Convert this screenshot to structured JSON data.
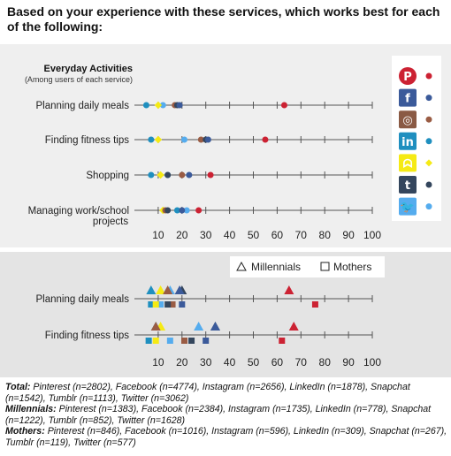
{
  "question": "Based on your experience with these services, which works best for each of the following:",
  "colors": {
    "Pinterest": "#cc2233",
    "Facebook": "#3b5a9a",
    "Instagram": "#9a5c44",
    "LinkedIn": "#1f8fbf",
    "Snapchat": "#f5ea14",
    "Tumblr": "#34465d",
    "Twitter": "#55acee"
  },
  "legend_icons": [
    {
      "service": "Pinterest",
      "glyph": "P",
      "icon": "pinterest-icon"
    },
    {
      "service": "Facebook",
      "glyph": "f",
      "icon": "facebook-icon"
    },
    {
      "service": "Instagram",
      "glyph": "◎",
      "icon": "instagram-icon"
    },
    {
      "service": "LinkedIn",
      "glyph": "in",
      "icon": "linkedin-icon"
    },
    {
      "service": "Snapchat",
      "glyph": "ᗣ",
      "icon": "snapchat-icon"
    },
    {
      "service": "Tumblr",
      "glyph": "t",
      "icon": "tumblr-icon"
    },
    {
      "service": "Twitter",
      "glyph": "🐦",
      "icon": "twitter-icon"
    }
  ],
  "chart_data": [
    {
      "type": "scatter",
      "title": "Everyday Activities",
      "subtitle": "(Among users of each service)",
      "xlim": [
        0,
        100
      ],
      "xticks": [
        10,
        20,
        30,
        40,
        50,
        60,
        70,
        80,
        90,
        100
      ],
      "categories": [
        "Planning daily meals",
        "Finding fitness tips",
        "Shopping",
        "Managing work/school projects"
      ],
      "series": [
        {
          "name": "Pinterest",
          "values": [
            63,
            55,
            32,
            27
          ]
        },
        {
          "name": "Facebook",
          "values": [
            19,
            31,
            23,
            20
          ]
        },
        {
          "name": "Instagram",
          "values": [
            17,
            28,
            20,
            13
          ]
        },
        {
          "name": "LinkedIn",
          "values": [
            5,
            7,
            7,
            18
          ]
        },
        {
          "name": "Snapchat",
          "values": [
            10,
            10,
            11,
            12
          ]
        },
        {
          "name": "Tumblr",
          "values": [
            18,
            30,
            14,
            14
          ]
        },
        {
          "name": "Twitter",
          "values": [
            12,
            21,
            14,
            22
          ]
        }
      ]
    },
    {
      "type": "scatter",
      "xlim": [
        0,
        100
      ],
      "xticks": [
        10,
        20,
        30,
        40,
        50,
        60,
        70,
        80,
        90,
        100
      ],
      "legend": [
        "Millennials",
        "Mothers"
      ],
      "categories": [
        "Planning daily meals",
        "Finding fitness tips"
      ],
      "groups": [
        {
          "name": "Millennials",
          "series": [
            {
              "name": "Pinterest",
              "values": [
                65,
                67
              ]
            },
            {
              "name": "Facebook",
              "values": [
                19,
                34
              ]
            },
            {
              "name": "Instagram",
              "values": [
                14,
                9
              ]
            },
            {
              "name": "LinkedIn",
              "values": [
                7,
                9
              ]
            },
            {
              "name": "Snapchat",
              "values": [
                11,
                11
              ]
            },
            {
              "name": "Tumblr",
              "values": [
                20,
                34
              ]
            },
            {
              "name": "Twitter",
              "values": [
                15,
                27
              ]
            }
          ]
        },
        {
          "name": "Mothers",
          "series": [
            {
              "name": "Pinterest",
              "values": [
                76,
                62
              ]
            },
            {
              "name": "Facebook",
              "values": [
                20,
                30
              ]
            },
            {
              "name": "Instagram",
              "values": [
                16,
                21
              ]
            },
            {
              "name": "LinkedIn",
              "values": [
                7,
                6
              ]
            },
            {
              "name": "Snapchat",
              "values": [
                9,
                9
              ]
            },
            {
              "name": "Tumblr",
              "values": [
                14,
                24
              ]
            },
            {
              "name": "Twitter",
              "values": [
                11,
                15
              ]
            }
          ]
        }
      ]
    }
  ],
  "totals": [
    {
      "group": "Total:",
      "text": "Pinterest (n=2802), Facebook (n=4774), Instagram (n=2656), LinkedIn (n=1878), Snapchat (n=1542), Tumblr (n=1113), Twitter (n=3062)"
    },
    {
      "group": "Millennials:",
      "text": "Pinterest (n=1383), Facebook (n=2384), Instagram (n=1735), LinkedIn (n=778), Snapchat (n=1222), Tumblr (n=852), Twitter (n=1628)"
    },
    {
      "group": "Mothers:",
      "text": "Pinterest (n=846), Facebook (n=1016), Instagram (n=596), LinkedIn (n=309), Snapchat (n=267), Tumblr (n=119), Twitter (n=577)"
    }
  ]
}
